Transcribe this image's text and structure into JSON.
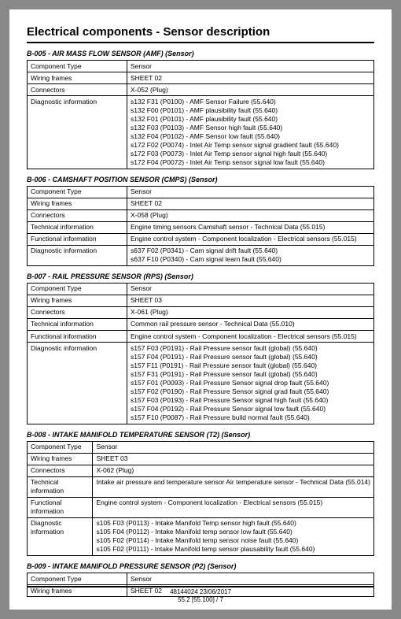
{
  "page_title": "Electrical components - Sensor description",
  "sections": [
    {
      "id": "b005",
      "header": "B-005 - AIR MASS FLOW SENSOR (AMF) (Sensor)",
      "rows": [
        {
          "label": "Component Type",
          "lines": [
            "Sensor"
          ]
        },
        {
          "label": "Wiring frames",
          "lines": [
            "SHEET 02"
          ]
        },
        {
          "label": "Connectors",
          "lines": [
            "X-052 (Plug)"
          ]
        },
        {
          "label": "Diagnostic information",
          "lines": [
            "s132 F31 (P0100) - AMF Sensor Failure (55.640)",
            "s132 F00 (P0101) - AMF plausibility fault (55.640)",
            "s132 F01 (P0101) - AMF plausibility fault (55.640)",
            "s132 F03 (P0103) - AMF Sensor high fault (55.640)",
            "s132 F04 (P0102) - AMF Sensor low fault (55.640)",
            "s172 F02 (P0074) - Inlet Air Temp sensor signal gradient fault (55.640)",
            "s172 F03 (P0073) - Inlet Air Temp sensor signal high fault (55.640)",
            "s172 F04 (P0072) - Inlet Air Temp sensor signal low fault (55.640)"
          ]
        }
      ]
    },
    {
      "id": "b006",
      "header": "B-006 - CAMSHAFT POSITION SENSOR (CMPS) (Sensor)",
      "rows": [
        {
          "label": "Component Type",
          "lines": [
            "Sensor"
          ]
        },
        {
          "label": "Wiring frames",
          "lines": [
            "SHEET 02"
          ]
        },
        {
          "label": "Connectors",
          "lines": [
            "X-058 (Plug)"
          ]
        },
        {
          "label": "Technical information",
          "lines": [
            "Engine timing sensors Camshaft sensor - Technical Data (55.015)"
          ]
        },
        {
          "label": "Functional information",
          "lines": [
            "Engine control system - Component localization - Electrical sensors (55.015)"
          ]
        },
        {
          "label": "Diagnostic information",
          "lines": [
            "s637 F02 (P0341) - Cam signal drift fault (55.640)",
            "s637 F10 (P0340) - Cam signal learn fault (55.640)"
          ]
        }
      ]
    },
    {
      "id": "b007",
      "header": "B-007 - RAIL PRESSURE SENSOR (RPS) (Sensor)",
      "rows": [
        {
          "label": "Component Type",
          "lines": [
            "Sensor"
          ]
        },
        {
          "label": "Wiring frames",
          "lines": [
            "SHEET 03"
          ]
        },
        {
          "label": "Connectors",
          "lines": [
            "X-061 (Plug)"
          ]
        },
        {
          "label": "Technical information",
          "lines": [
            "Common rail pressure sensor - Technical Data (55.010)"
          ]
        },
        {
          "label": "Functional information",
          "lines": [
            "Engine control system - Component localization - Electrical sensors (55.015)"
          ]
        },
        {
          "label": "Diagnostic information",
          "lines": [
            "s157 F03 (P0191) - Rail Pressure sensor fault (global) (55.640)",
            "s157 F04 (P0191) - Rail Pressure sensor fault (global) (55.640)",
            "s157 F11 (P0191) - Rail Pressure sensor fault (global) (55.640)",
            "s157 F31 (P0191) - Rail Pressure sensor fault (global) (55.640)",
            "s157 F01 (P0093) - Rail Pressure Sensor signal drop fault (55.640)",
            "s157 F02 (P0190) - Rail Pressure Sensor signal grad fault (55.640)",
            "s157 F03 (P0193) - Rail Pressure Sensor signal high fault (55.640)",
            "s157 F04 (P0192) - Rail Pressure Sensor signal low fault (55.640)",
            "s157 F10 (P0087) - Rail Pressure build normal fault (55.640)"
          ]
        }
      ]
    },
    {
      "id": "b008",
      "header": "B-008 - INTAKE MANIFOLD TEMPERATURE SENSOR (T2) (Sensor)",
      "rows": [
        {
          "label": "Component Type",
          "lines": [
            "Sensor"
          ]
        },
        {
          "label": "Wiring frames",
          "lines": [
            "SHEET 03"
          ]
        },
        {
          "label": "Connectors",
          "lines": [
            "X-062 (Plug)"
          ]
        },
        {
          "label": "Technical information",
          "lines": [
            "Intake air pressure and temperature sensor Air temperature sensor - Technical Data (55.014)"
          ]
        },
        {
          "label": "Functional information",
          "lines": [
            "Engine control system - Component localization - Electrical sensors (55.015)"
          ]
        },
        {
          "label": "Diagnostic information",
          "lines": [
            "s105 F03 (P0113) - Intake Manifold Temp sensor high fault (55.640)",
            "s105 F04 (P0112) - Intake Manifold temp sensor low fault (55.640)",
            "s105 F02 (P0114) - Intake Manifold temp sensor noise fault (55.640)",
            "s105 F02 (P0111) - Intake Manifold temp sensor plausability fault (55.640)"
          ]
        }
      ]
    },
    {
      "id": "b009",
      "header": "B-009 - INTAKE MANIFOLD PRESSURE SENSOR (P2) (Sensor)",
      "rows": [
        {
          "label": "Component Type",
          "lines": [
            "Sensor"
          ]
        },
        {
          "label": "Wiring frames",
          "lines": [
            "SHEET 02"
          ]
        }
      ]
    }
  ],
  "footer": {
    "line1": "48144024 23/06/2017",
    "line2": "55.2 [55.100] / 7"
  }
}
